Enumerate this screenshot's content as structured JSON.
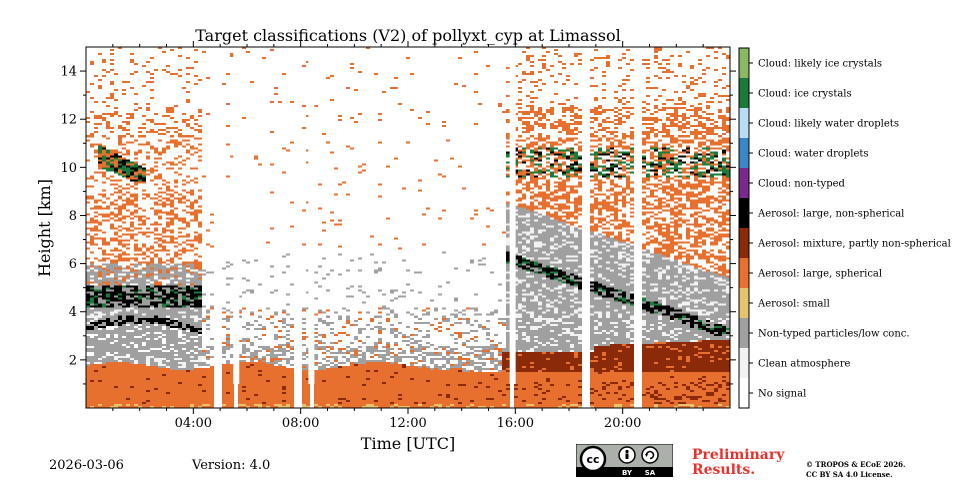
{
  "chart_data": {
    "type": "heatmap",
    "title": "Target classifications (V2) of pollyxt_cyp at Limassol",
    "xlabel": "Time [UTC]",
    "ylabel": "Height [km]",
    "xlim": [
      0,
      24
    ],
    "ylim": [
      0,
      15
    ],
    "x_ticks": [
      {
        "value": 4,
        "label": "04:00"
      },
      {
        "value": 8,
        "label": "08:00"
      },
      {
        "value": 12,
        "label": "12:00"
      },
      {
        "value": 16,
        "label": "16:00"
      },
      {
        "value": 20,
        "label": "20:00"
      }
    ],
    "y_ticks": [
      {
        "value": 2,
        "label": "2"
      },
      {
        "value": 4,
        "label": "4"
      },
      {
        "value": 6,
        "label": "6"
      },
      {
        "value": 8,
        "label": "8"
      },
      {
        "value": 10,
        "label": "10"
      },
      {
        "value": 12,
        "label": "12"
      },
      {
        "value": 14,
        "label": "14"
      }
    ],
    "classes": [
      {
        "label": "Cloud: likely ice crystals",
        "color": "#8ab863"
      },
      {
        "label": "Cloud: ice crystals",
        "color": "#1a7a3a"
      },
      {
        "label": "Cloud: likely water droplets",
        "color": "#b8dcf4"
      },
      {
        "label": "Cloud: water droplets",
        "color": "#3a86c6"
      },
      {
        "label": "Cloud: non-typed",
        "color": "#7a2a8e"
      },
      {
        "label": "Aerosol: large, non-spherical",
        "color": "#000000"
      },
      {
        "label": "Aerosol: mixture, partly non-spherical",
        "color": "#8a2a08"
      },
      {
        "label": "Aerosol: large, spherical",
        "color": "#e8702e"
      },
      {
        "label": "Aerosol: small",
        "color": "#e6c36e"
      },
      {
        "label": "Non-typed particles/low conc.",
        "color": "#a0a0a0"
      },
      {
        "label": "Clean atmosphere",
        "color": "#f2f2f2"
      },
      {
        "label": "No signal",
        "color": "#ffffff"
      }
    ],
    "layers": [
      {
        "class": "Aerosol: large, spherical",
        "from_h": 0.0,
        "to_h": 1.8,
        "description": "boundary layer, whole day"
      },
      {
        "class": "Aerosol: mixture, partly non-spherical",
        "from_h": 1.8,
        "to_h": 2.8,
        "t_range": [
          15.5,
          24
        ],
        "description": "mixture layer, afternoon/evening"
      },
      {
        "class": "Non-typed particles/low conc.",
        "from_h": 2.0,
        "to_h": 3.6,
        "t_range": [
          0,
          4.2
        ],
        "description": "lower gray band, morning"
      },
      {
        "class": "Aerosol: large, non-spherical",
        "from_h": 3.6,
        "to_h": 5.2,
        "t_range": [
          0,
          4.2
        ],
        "description": "dust layers, morning"
      },
      {
        "class": "Non-typed particles/low conc.",
        "from_h": 2.8,
        "to_h": 6.2,
        "t_range": [
          15.8,
          24
        ],
        "description": "upper gray region, evening"
      },
      {
        "class": "Cloud: ice crystals",
        "from_h": 9.5,
        "to_h": 11.2,
        "t_range": [
          15.8,
          22.5
        ],
        "description": "cirrus, evening"
      }
    ],
    "data_gaps_utc": [
      4.9,
      5.6,
      7.9,
      8.4,
      15.9,
      18.6,
      20.6
    ]
  },
  "footer": {
    "date": "2026-03-06",
    "version": "Version: 4.0",
    "prelim_line1": "Preliminary",
    "prelim_line2": "Results.",
    "copyright_line1": "© TROPOS & ECoE 2026.",
    "copyright_line2": "CC BY SA 4.0 License."
  },
  "license_badge": {
    "cc": "cc",
    "by": "BY",
    "sa": "SA"
  }
}
